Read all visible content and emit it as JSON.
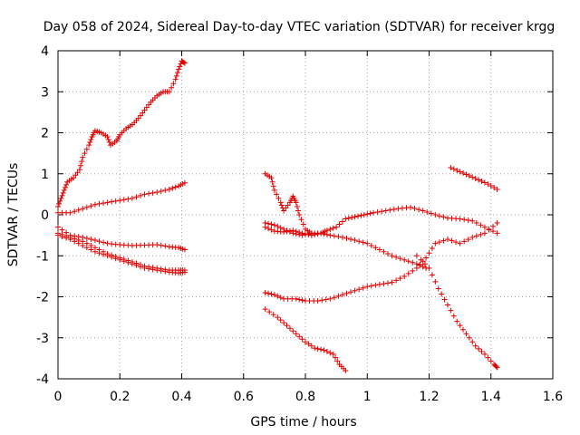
{
  "chart_data": {
    "type": "scatter",
    "title": "Day 058 of 2024, Sidereal Day-to-day VTEC variation (SDTVAR) for receiver krgg",
    "xlabel": "GPS time / hours",
    "ylabel": "SDTVAR / TECUs",
    "xlim": [
      0,
      1.6
    ],
    "ylim": [
      -4,
      4
    ],
    "xticks": [
      0,
      0.2,
      0.4,
      0.6,
      0.8,
      1,
      1.2,
      1.4,
      1.6
    ],
    "xtick_labels": [
      "0",
      "0.2",
      "0.4",
      "0.6",
      "0.8",
      "1",
      "1.2",
      "1.4",
      "1.6"
    ],
    "yticks": [
      -4,
      -3,
      -2,
      -1,
      0,
      1,
      2,
      3,
      4
    ],
    "ytick_labels": [
      "-4",
      "-3",
      "-2",
      "-1",
      "0",
      "1",
      "2",
      "3",
      "4"
    ],
    "grid": true,
    "marker": "+",
    "marker_color": "#e00000",
    "series": [
      {
        "name": "s1",
        "points": [
          [
            0,
            0.2
          ],
          [
            0.01,
            0.4
          ],
          [
            0.02,
            0.6
          ],
          [
            0.03,
            0.8
          ],
          [
            0.05,
            0.9
          ],
          [
            0.07,
            1.1
          ],
          [
            0.08,
            1.4
          ],
          [
            0.1,
            1.7
          ],
          [
            0.11,
            1.9
          ],
          [
            0.12,
            2.05
          ],
          [
            0.14,
            2.0
          ],
          [
            0.16,
            1.9
          ],
          [
            0.17,
            1.7
          ],
          [
            0.19,
            1.8
          ],
          [
            0.2,
            1.95
          ],
          [
            0.22,
            2.1
          ],
          [
            0.24,
            2.2
          ],
          [
            0.26,
            2.35
          ],
          [
            0.28,
            2.55
          ],
          [
            0.3,
            2.75
          ],
          [
            0.32,
            2.9
          ],
          [
            0.34,
            3.0
          ],
          [
            0.36,
            3.0
          ],
          [
            0.38,
            3.3
          ],
          [
            0.39,
            3.55
          ],
          [
            0.4,
            3.75
          ],
          [
            0.41,
            3.7
          ]
        ]
      },
      {
        "name": "s2",
        "points": [
          [
            0,
            0.05
          ],
          [
            0.04,
            0.05
          ],
          [
            0.08,
            0.15
          ],
          [
            0.12,
            0.25
          ],
          [
            0.16,
            0.3
          ],
          [
            0.2,
            0.35
          ],
          [
            0.24,
            0.4
          ],
          [
            0.28,
            0.5
          ],
          [
            0.32,
            0.55
          ],
          [
            0.36,
            0.62
          ],
          [
            0.39,
            0.7
          ],
          [
            0.41,
            0.78
          ]
        ]
      },
      {
        "name": "s3",
        "points": [
          [
            0,
            -0.3
          ],
          [
            0.04,
            -0.5
          ],
          [
            0.08,
            -0.55
          ],
          [
            0.12,
            -0.62
          ],
          [
            0.16,
            -0.7
          ],
          [
            0.2,
            -0.73
          ],
          [
            0.24,
            -0.75
          ],
          [
            0.28,
            -0.74
          ],
          [
            0.32,
            -0.73
          ],
          [
            0.36,
            -0.78
          ],
          [
            0.39,
            -0.8
          ],
          [
            0.41,
            -0.85
          ]
        ]
      },
      {
        "name": "s4",
        "points": [
          [
            0,
            -0.45
          ],
          [
            0.04,
            -0.55
          ],
          [
            0.08,
            -0.65
          ],
          [
            0.12,
            -0.8
          ],
          [
            0.16,
            -0.95
          ],
          [
            0.2,
            -1.05
          ],
          [
            0.24,
            -1.15
          ],
          [
            0.28,
            -1.25
          ],
          [
            0.32,
            -1.3
          ],
          [
            0.36,
            -1.35
          ],
          [
            0.39,
            -1.35
          ],
          [
            0.41,
            -1.35
          ]
        ]
      },
      {
        "name": "s5",
        "points": [
          [
            0,
            -0.5
          ],
          [
            0.04,
            -0.6
          ],
          [
            0.08,
            -0.75
          ],
          [
            0.12,
            -0.9
          ],
          [
            0.16,
            -1.0
          ],
          [
            0.2,
            -1.1
          ],
          [
            0.24,
            -1.2
          ],
          [
            0.28,
            -1.3
          ],
          [
            0.32,
            -1.35
          ],
          [
            0.36,
            -1.4
          ],
          [
            0.39,
            -1.42
          ],
          [
            0.41,
            -1.4
          ]
        ]
      },
      {
        "name": "s6",
        "points": [
          [
            0.67,
            1.0
          ],
          [
            0.69,
            0.9
          ],
          [
            0.7,
            0.6
          ],
          [
            0.72,
            0.3
          ],
          [
            0.73,
            0.1
          ],
          [
            0.75,
            0.3
          ],
          [
            0.76,
            0.45
          ],
          [
            0.77,
            0.3
          ],
          [
            0.78,
            0.0
          ],
          [
            0.8,
            -0.35
          ],
          [
            0.82,
            -0.45
          ]
        ]
      },
      {
        "name": "s7",
        "points": [
          [
            0.67,
            -0.2
          ],
          [
            0.7,
            -0.25
          ],
          [
            0.73,
            -0.35
          ],
          [
            0.76,
            -0.45
          ],
          [
            0.79,
            -0.5
          ],
          [
            0.82,
            -0.45
          ],
          [
            0.85,
            -0.45
          ],
          [
            0.87,
            -0.38
          ],
          [
            0.9,
            -0.3
          ],
          [
            0.93,
            -0.1
          ],
          [
            0.96,
            -0.05
          ],
          [
            0.99,
            0.0
          ],
          [
            1.02,
            0.05
          ],
          [
            1.06,
            0.1
          ],
          [
            1.1,
            0.15
          ],
          [
            1.14,
            0.18
          ],
          [
            1.18,
            0.1
          ],
          [
            1.22,
            0.0
          ],
          [
            1.26,
            -0.08
          ],
          [
            1.3,
            -0.1
          ],
          [
            1.34,
            -0.15
          ],
          [
            1.38,
            -0.3
          ],
          [
            1.42,
            -0.45
          ]
        ]
      },
      {
        "name": "s8",
        "points": [
          [
            0.67,
            -0.3
          ],
          [
            0.7,
            -0.4
          ],
          [
            0.73,
            -0.42
          ],
          [
            0.76,
            -0.38
          ],
          [
            0.79,
            -0.45
          ],
          [
            0.82,
            -0.5
          ],
          [
            0.85,
            -0.45
          ],
          [
            0.88,
            -0.5
          ],
          [
            0.92,
            -0.55
          ],
          [
            0.96,
            -0.62
          ],
          [
            1.0,
            -0.7
          ],
          [
            1.04,
            -0.85
          ],
          [
            1.08,
            -1.0
          ],
          [
            1.12,
            -1.1
          ],
          [
            1.16,
            -1.2
          ],
          [
            1.19,
            -1.3
          ]
        ]
      },
      {
        "name": "s9",
        "points": [
          [
            0.67,
            -1.9
          ],
          [
            0.7,
            -1.95
          ],
          [
            0.73,
            -2.05
          ],
          [
            0.77,
            -2.05
          ],
          [
            0.8,
            -2.1
          ],
          [
            0.84,
            -2.1
          ],
          [
            0.88,
            -2.05
          ],
          [
            0.92,
            -1.95
          ],
          [
            0.96,
            -1.85
          ],
          [
            1.0,
            -1.75
          ],
          [
            1.04,
            -1.7
          ],
          [
            1.08,
            -1.65
          ],
          [
            1.12,
            -1.5
          ],
          [
            1.16,
            -1.3
          ],
          [
            1.19,
            -1.05
          ],
          [
            1.22,
            -0.7
          ],
          [
            1.26,
            -0.6
          ],
          [
            1.3,
            -0.7
          ],
          [
            1.34,
            -0.55
          ],
          [
            1.38,
            -0.45
          ],
          [
            1.42,
            -0.2
          ]
        ]
      },
      {
        "name": "s10",
        "points": [
          [
            0.67,
            -2.3
          ],
          [
            0.71,
            -2.5
          ],
          [
            0.74,
            -2.7
          ],
          [
            0.77,
            -2.9
          ],
          [
            0.8,
            -3.1
          ],
          [
            0.83,
            -3.25
          ],
          [
            0.86,
            -3.3
          ],
          [
            0.89,
            -3.4
          ],
          [
            0.91,
            -3.65
          ],
          [
            0.93,
            -3.8
          ]
        ]
      },
      {
        "name": "s11",
        "points": [
          [
            1.16,
            -1.0
          ],
          [
            1.2,
            -1.3
          ],
          [
            1.23,
            -1.8
          ],
          [
            1.26,
            -2.2
          ],
          [
            1.29,
            -2.6
          ],
          [
            1.32,
            -2.9
          ],
          [
            1.35,
            -3.2
          ],
          [
            1.38,
            -3.4
          ],
          [
            1.41,
            -3.65
          ],
          [
            1.42,
            -3.72
          ]
        ]
      },
      {
        "name": "s12",
        "points": [
          [
            1.27,
            1.15
          ],
          [
            1.3,
            1.05
          ],
          [
            1.33,
            0.95
          ],
          [
            1.36,
            0.85
          ],
          [
            1.39,
            0.75
          ],
          [
            1.42,
            0.62
          ]
        ]
      }
    ]
  }
}
